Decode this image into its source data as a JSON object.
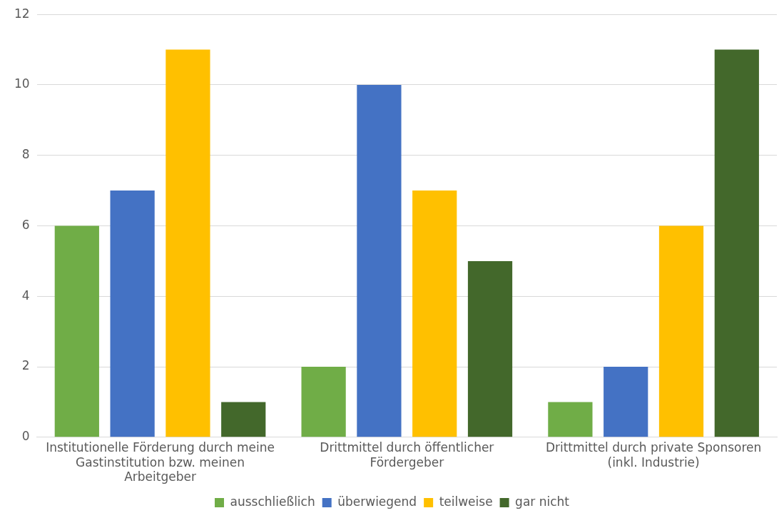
{
  "chart_data": {
    "type": "bar",
    "categories": [
      "Institutionelle Förderung durch meine Gastinstitution bzw. meinen Arbeitgeber",
      "Drittmittel durch öffentlicher Fördergeber",
      "Drittmittel durch private Sponsoren (inkl. Industrie)"
    ],
    "series": [
      {
        "name": "ausschließlich",
        "color": "#70ad47",
        "values": [
          6,
          2,
          1
        ]
      },
      {
        "name": "überwiegend",
        "color": "#4472c4",
        "values": [
          7,
          10,
          2
        ]
      },
      {
        "name": "teilweise",
        "color": "#ffc000",
        "values": [
          11,
          7,
          6
        ]
      },
      {
        "name": "gar nicht",
        "color": "#43682b",
        "values": [
          1,
          5,
          11
        ]
      }
    ],
    "ylim": [
      0,
      12
    ],
    "yticks": [
      0,
      2,
      4,
      6,
      8,
      10,
      12
    ],
    "grid": "y",
    "legend": "bottom"
  }
}
